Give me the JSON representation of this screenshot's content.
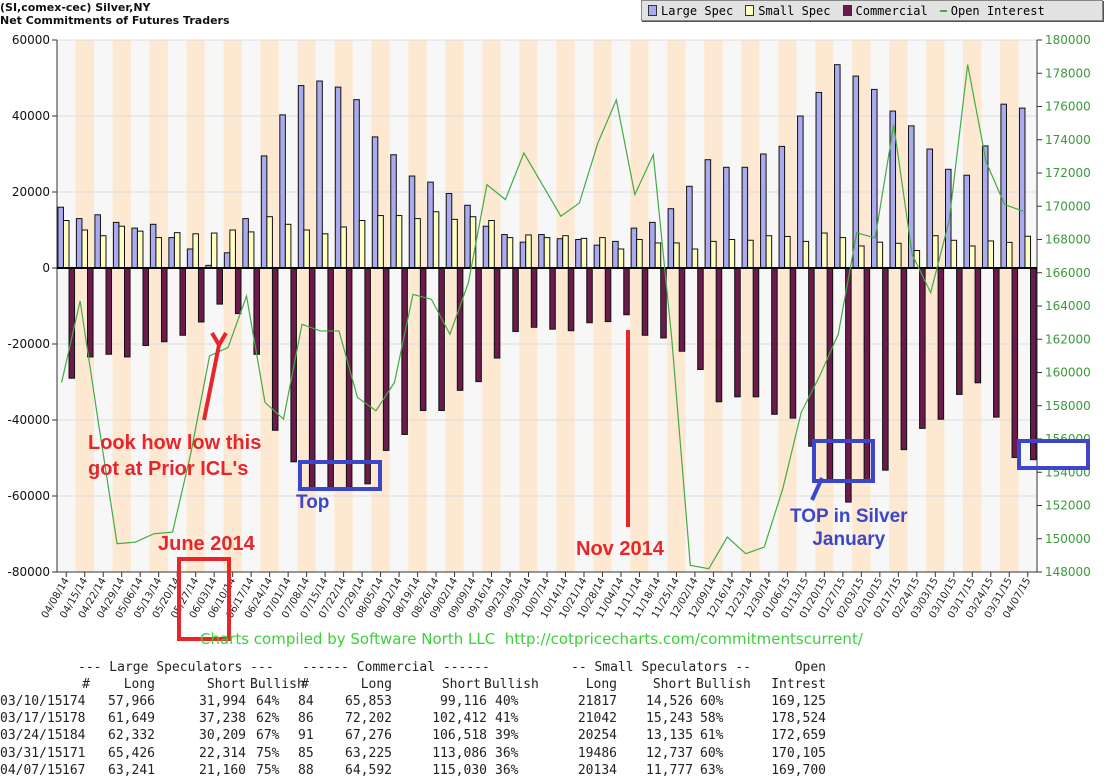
{
  "header": {
    "title": "(SI,comex-cec) Silver,NY",
    "subtitle": "Net Commitments of Futures Traders"
  },
  "legend": [
    {
      "label": "Large Spec",
      "color": "#aaaaee"
    },
    {
      "label": "Small Spec",
      "color": "#ffffc0"
    },
    {
      "label": "Commercial",
      "color": "#6b1a4b"
    },
    {
      "label": "Open Interest",
      "color": "#44aa44"
    }
  ],
  "chart_data": {
    "type": "bar",
    "title": "Net Commitments of Futures Traders",
    "left_axis": {
      "ylim": [
        -80000,
        60000
      ],
      "ticks": [
        60000,
        40000,
        20000,
        0,
        -20000,
        -40000,
        -60000,
        -80000
      ]
    },
    "right_axis": {
      "ylim": [
        148000,
        180000
      ],
      "ticks": [
        180000,
        178000,
        176000,
        174000,
        172000,
        170000,
        168000,
        166000,
        164000,
        162000,
        160000,
        158000,
        156000,
        154000,
        152000,
        150000,
        148000
      ]
    },
    "categories": [
      "04/08/14",
      "04/15/14",
      "04/22/14",
      "04/29/14",
      "05/06/14",
      "05/13/14",
      "05/20/14",
      "05/27/14",
      "06/03/14",
      "06/10/14",
      "06/17/14",
      "06/24/14",
      "07/01/14",
      "07/08/14",
      "07/15/14",
      "07/22/14",
      "07/29/14",
      "08/05/14",
      "08/12/14",
      "08/19/14",
      "08/26/14",
      "09/02/14",
      "09/09/14",
      "09/16/14",
      "09/23/14",
      "09/30/14",
      "10/07/14",
      "10/14/14",
      "10/21/14",
      "10/28/14",
      "11/04/14",
      "11/11/14",
      "11/18/14",
      "11/25/14",
      "12/02/14",
      "12/09/14",
      "12/16/14",
      "12/23/14",
      "12/30/14",
      "01/06/15",
      "01/13/15",
      "01/20/15",
      "01/27/15",
      "02/03/15",
      "02/10/15",
      "02/17/15",
      "02/24/15",
      "03/03/15",
      "03/10/15",
      "03/17/15",
      "03/24/15",
      "03/31/15",
      "04/07/15"
    ],
    "series": [
      {
        "name": "Large Spec",
        "axis": "left",
        "values": [
          16000,
          13000,
          14000,
          12000,
          10500,
          11500,
          8000,
          5000,
          700,
          4000,
          13000,
          29500,
          40300,
          48000,
          49200,
          47600,
          44300,
          34500,
          29800,
          24200,
          22600,
          19600,
          16500,
          11000,
          8800,
          6800,
          8800,
          7700,
          7500,
          6000,
          7000,
          10500,
          12000,
          15600,
          21500,
          28500,
          26500,
          26500,
          30000,
          32000,
          40000,
          46200,
          53500,
          50500,
          47000,
          41300,
          37400,
          31300,
          25972,
          24411,
          32123,
          43112,
          42081
        ]
      },
      {
        "name": "Small Spec",
        "axis": "left",
        "values": [
          12500,
          10000,
          8500,
          11000,
          9700,
          8000,
          9300,
          9000,
          9200,
          10000,
          9500,
          13500,
          11500,
          10000,
          9000,
          10800,
          12500,
          13800,
          13800,
          13000,
          14800,
          12800,
          13500,
          12500,
          8000,
          8700,
          8000,
          8500,
          7800,
          8000,
          5000,
          7500,
          6600,
          6600,
          5000,
          7000,
          7500,
          7300,
          8500,
          8300,
          7000,
          9200,
          8000,
          5800,
          6800,
          6500,
          4600,
          8500,
          7291,
          5799,
          7119,
          6749,
          8357
        ]
      },
      {
        "name": "Commercial",
        "axis": "left",
        "values": [
          -29000,
          -23400,
          -22700,
          -23400,
          -20400,
          -19400,
          -17700,
          -14200,
          -9500,
          -12000,
          -22700,
          -42700,
          -51000,
          -57700,
          -57700,
          -57700,
          -56800,
          -48000,
          -43800,
          -37500,
          -37500,
          -32200,
          -29900,
          -23700,
          -16700,
          -15600,
          -16100,
          -16500,
          -14400,
          -14100,
          -12300,
          -17700,
          -18400,
          -21900,
          -26700,
          -35200,
          -33900,
          -33900,
          -38500,
          -39500,
          -46900,
          -55600,
          -61600,
          -56300,
          -53200,
          -47800,
          -42200,
          -39800,
          -33263,
          -30210,
          -39242,
          -49861,
          -50438
        ]
      },
      {
        "name": "Open Interest",
        "axis": "right",
        "type": "line",
        "values": [
          159400,
          164300,
          156900,
          149700,
          149800,
          150300,
          150400,
          155200,
          161000,
          161500,
          164600,
          158200,
          157200,
          162900,
          162500,
          162500,
          158500,
          157700,
          159400,
          164700,
          164400,
          162300,
          165400,
          171300,
          170400,
          173200,
          171300,
          169400,
          170200,
          173800,
          176400,
          170700,
          173100,
          162000,
          148400,
          148200,
          150100,
          149100,
          149500,
          153000,
          157600,
          159800,
          162300,
          168400,
          168100,
          174900,
          167100,
          164800,
          169125,
          178524,
          172659,
          170105,
          169700
        ]
      }
    ],
    "grid": true,
    "legend_position": "top-right"
  },
  "annotations": {
    "icl_note_line1": "Look how low this",
    "icl_note_line2": "got at Prior ICL's",
    "june": "June 2014",
    "nov": "Nov 2014",
    "top": "Top",
    "top_silver_line1": "TOP in Silver",
    "top_silver_line2": "January"
  },
  "credit": "Charts compiled by Software North LLC  http://cotpricecharts.com/commitmentscurrent/",
  "table": {
    "group_headers": [
      "--- Large Speculators ---",
      "------ Commercial ------",
      "-- Small Speculators --",
      "Open"
    ],
    "columns": [
      "#",
      "Long",
      "Short",
      "Bullish",
      "#",
      "Long",
      "Short",
      "Bullish",
      "Long",
      "Short",
      "Bullish",
      "Intrest"
    ],
    "rows": [
      [
        "03/10/15",
        "174",
        "57,966",
        "31,994",
        "64%",
        "84",
        "65,853",
        "99,116",
        "40%",
        "21817",
        "14,526",
        "60%",
        "169,125"
      ],
      [
        "03/17/15",
        "178",
        "61,649",
        "37,238",
        "62%",
        "86",
        "72,202",
        "102,412",
        "41%",
        "21042",
        "15,243",
        "58%",
        "178,524"
      ],
      [
        "03/24/15",
        "184",
        "62,332",
        "30,209",
        "67%",
        "91",
        "67,276",
        "106,518",
        "39%",
        "20254",
        "13,135",
        "61%",
        "172,659"
      ],
      [
        "03/31/15",
        "171",
        "65,426",
        "22,314",
        "75%",
        "85",
        "63,225",
        "113,086",
        "36%",
        "19486",
        "12,737",
        "60%",
        "170,105"
      ],
      [
        "04/07/15",
        "167",
        "63,241",
        "21,160",
        "75%",
        "88",
        "64,592",
        "115,030",
        "36%",
        "20134",
        "11,777",
        "63%",
        "169,700"
      ]
    ]
  }
}
